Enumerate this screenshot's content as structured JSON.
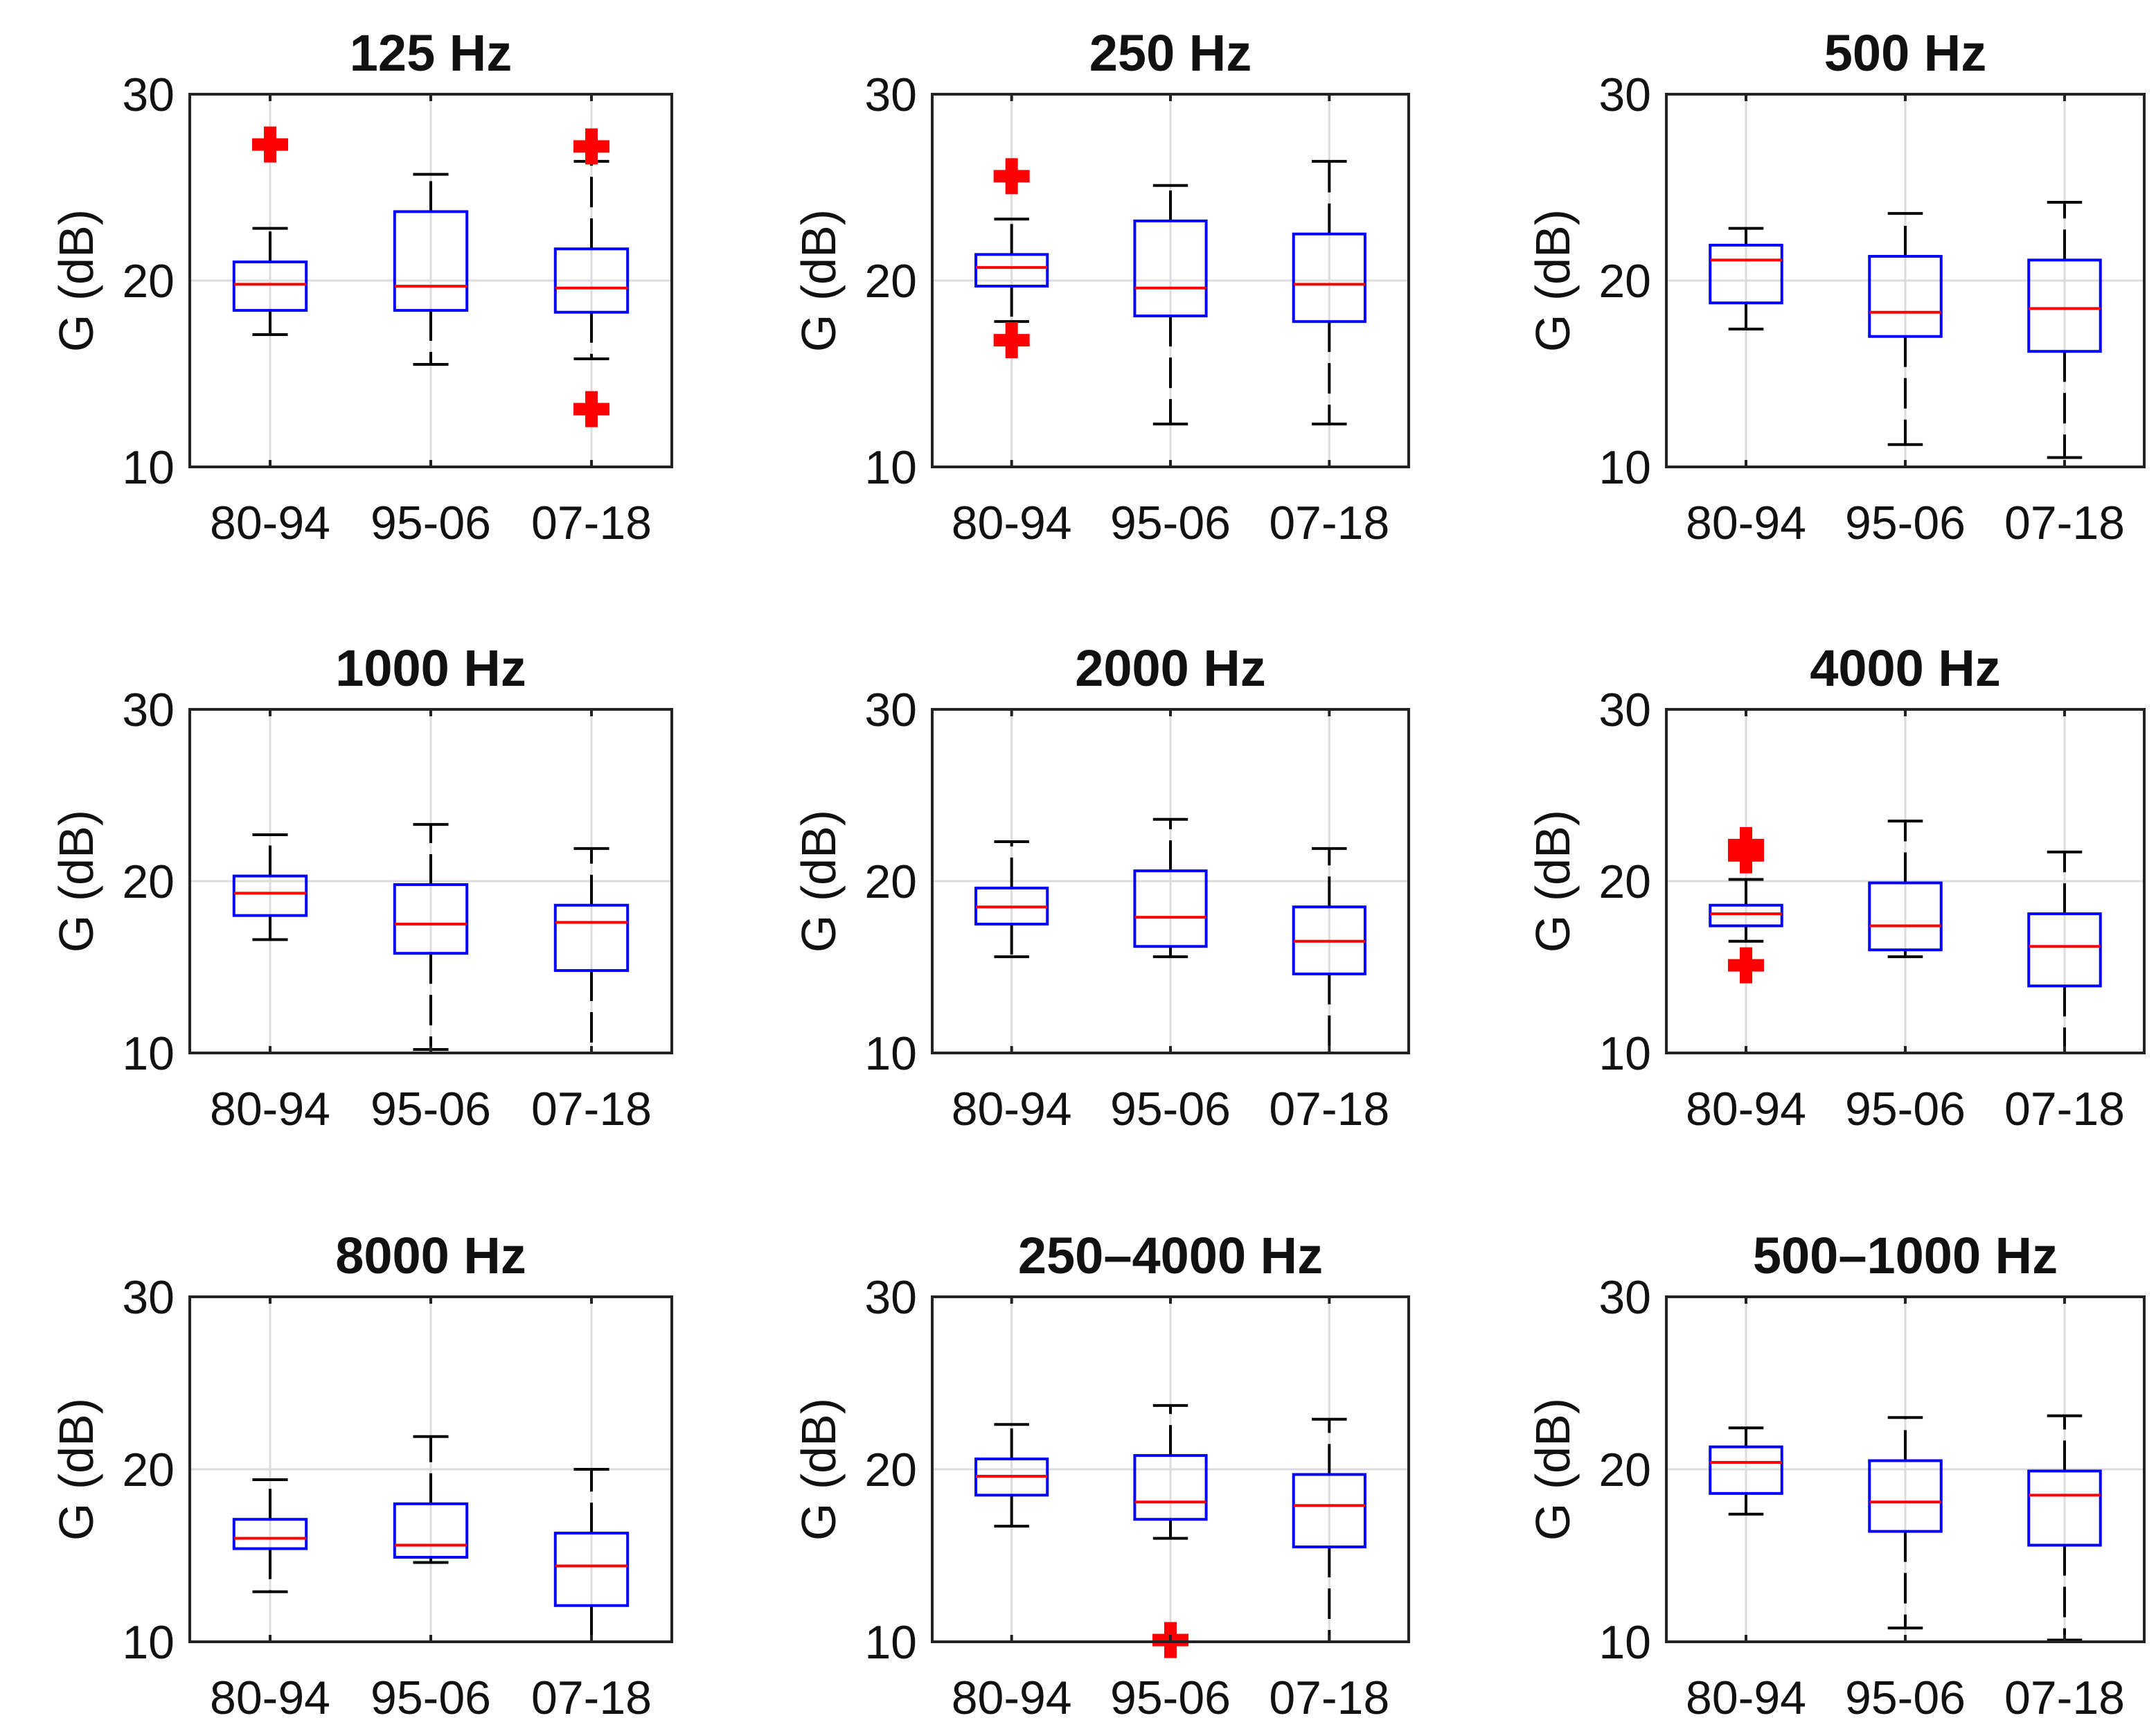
{
  "chart_data": [
    {
      "type": "box",
      "title": "125 Hz",
      "ylabel": "G (dB)",
      "ylim": [
        10,
        30
      ],
      "yticks": [
        "10",
        "20",
        "30"
      ],
      "categories": [
        "80-94",
        "95-06",
        "07-18"
      ],
      "grid": true,
      "boxes": [
        {
          "whisker_low": 17.1,
          "q1": 18.4,
          "median": 19.8,
          "q3": 21.0,
          "whisker_high": 22.8,
          "outliers": [
            27.3
          ]
        },
        {
          "whisker_low": 15.5,
          "q1": 18.4,
          "median": 19.7,
          "q3": 23.7,
          "whisker_high": 25.7,
          "outliers": []
        },
        {
          "whisker_low": 15.8,
          "q1": 18.3,
          "median": 19.6,
          "q3": 21.7,
          "whisker_high": 26.4,
          "outliers": [
            27.2,
            13.1
          ]
        }
      ]
    },
    {
      "type": "box",
      "title": "250 Hz",
      "ylabel": "G (dB)",
      "ylim": [
        10,
        30
      ],
      "yticks": [
        "10",
        "20",
        "30"
      ],
      "categories": [
        "80-94",
        "95-06",
        "07-18"
      ],
      "grid": true,
      "boxes": [
        {
          "whisker_low": 17.8,
          "q1": 19.7,
          "median": 20.7,
          "q3": 21.4,
          "whisker_high": 23.3,
          "outliers": [
            25.6,
            16.8
          ]
        },
        {
          "whisker_low": 12.3,
          "q1": 18.1,
          "median": 19.6,
          "q3": 23.2,
          "whisker_high": 25.1,
          "outliers": []
        },
        {
          "whisker_low": 12.3,
          "q1": 17.8,
          "median": 19.8,
          "q3": 22.5,
          "whisker_high": 26.4,
          "outliers": []
        }
      ]
    },
    {
      "type": "box",
      "title": "500 Hz",
      "ylabel": "G (dB)",
      "ylim": [
        10,
        30
      ],
      "yticks": [
        "10",
        "20",
        "30"
      ],
      "categories": [
        "80-94",
        "95-06",
        "07-18"
      ],
      "grid": true,
      "boxes": [
        {
          "whisker_low": 17.4,
          "q1": 18.8,
          "median": 21.1,
          "q3": 21.9,
          "whisker_high": 22.8,
          "outliers": []
        },
        {
          "whisker_low": 11.2,
          "q1": 17.0,
          "median": 18.3,
          "q3": 21.3,
          "whisker_high": 23.6,
          "outliers": []
        },
        {
          "whisker_low": 10.5,
          "q1": 16.2,
          "median": 18.5,
          "q3": 21.1,
          "whisker_high": 24.2,
          "outliers": []
        }
      ]
    },
    {
      "type": "box",
      "title": "1000 Hz",
      "ylabel": "G (dB)",
      "ylim": [
        10,
        30
      ],
      "yticks": [
        "10",
        "20",
        "30"
      ],
      "categories": [
        "80-94",
        "95-06",
        "07-18"
      ],
      "grid": true,
      "boxes": [
        {
          "whisker_low": 16.6,
          "q1": 18.0,
          "median": 19.3,
          "q3": 20.3,
          "whisker_high": 22.7,
          "outliers": []
        },
        {
          "whisker_low": 10.2,
          "q1": 15.8,
          "median": 17.5,
          "q3": 19.8,
          "whisker_high": 23.3,
          "outliers": []
        },
        {
          "whisker_low": 10.0,
          "q1": 14.8,
          "median": 17.6,
          "q3": 18.6,
          "whisker_high": 21.9,
          "outliers": []
        }
      ]
    },
    {
      "type": "box",
      "title": "2000 Hz",
      "ylabel": "G (dB)",
      "ylim": [
        10,
        30
      ],
      "yticks": [
        "10",
        "20",
        "30"
      ],
      "categories": [
        "80-94",
        "95-06",
        "07-18"
      ],
      "grid": true,
      "boxes": [
        {
          "whisker_low": 15.6,
          "q1": 17.5,
          "median": 18.5,
          "q3": 19.6,
          "whisker_high": 22.3,
          "outliers": []
        },
        {
          "whisker_low": 15.6,
          "q1": 16.2,
          "median": 17.9,
          "q3": 20.6,
          "whisker_high": 23.6,
          "outliers": []
        },
        {
          "whisker_low": 10.0,
          "q1": 14.6,
          "median": 16.5,
          "q3": 18.5,
          "whisker_high": 21.9,
          "outliers": []
        }
      ]
    },
    {
      "type": "box",
      "title": "4000 Hz",
      "ylabel": "G (dB)",
      "ylim": [
        10,
        30
      ],
      "yticks": [
        "10",
        "20",
        "30"
      ],
      "categories": [
        "80-94",
        "95-06",
        "07-18"
      ],
      "grid": true,
      "boxes": [
        {
          "whisker_low": 16.5,
          "q1": 17.4,
          "median": 18.1,
          "q3": 18.6,
          "whisker_high": 20.1,
          "outliers": [
            22.1,
            21.5,
            15.1
          ]
        },
        {
          "whisker_low": 15.6,
          "q1": 16.0,
          "median": 17.4,
          "q3": 19.9,
          "whisker_high": 23.5,
          "outliers": []
        },
        {
          "whisker_low": 10.0,
          "q1": 13.9,
          "median": 16.2,
          "q3": 18.1,
          "whisker_high": 21.7,
          "outliers": []
        }
      ]
    },
    {
      "type": "box",
      "title": "8000 Hz",
      "ylabel": "G (dB)",
      "ylim": [
        10,
        30
      ],
      "yticks": [
        "10",
        "20",
        "30"
      ],
      "categories": [
        "80-94",
        "95-06",
        "07-18"
      ],
      "grid": true,
      "boxes": [
        {
          "whisker_low": 12.9,
          "q1": 15.4,
          "median": 16.0,
          "q3": 17.1,
          "whisker_high": 19.4,
          "outliers": []
        },
        {
          "whisker_low": 14.6,
          "q1": 14.9,
          "median": 15.6,
          "q3": 18.0,
          "whisker_high": 21.9,
          "outliers": []
        },
        {
          "whisker_low": 10.0,
          "q1": 12.1,
          "median": 14.4,
          "q3": 16.3,
          "whisker_high": 20.0,
          "outliers": []
        }
      ]
    },
    {
      "type": "box",
      "title": "250–4000 Hz",
      "ylabel": "G (dB)",
      "ylim": [
        10,
        30
      ],
      "yticks": [
        "10",
        "20",
        "30"
      ],
      "categories": [
        "80-94",
        "95-06",
        "07-18"
      ],
      "grid": true,
      "boxes": [
        {
          "whisker_low": 16.7,
          "q1": 18.5,
          "median": 19.6,
          "q3": 20.6,
          "whisker_high": 22.6,
          "outliers": []
        },
        {
          "whisker_low": 16.0,
          "q1": 17.1,
          "median": 18.1,
          "q3": 20.8,
          "whisker_high": 23.7,
          "outliers": [
            10.1
          ]
        },
        {
          "whisker_low": 10.0,
          "q1": 15.5,
          "median": 17.9,
          "q3": 19.7,
          "whisker_high": 22.9,
          "outliers": []
        }
      ]
    },
    {
      "type": "box",
      "title": "500–1000 Hz",
      "ylabel": "G (dB)",
      "ylim": [
        10,
        30
      ],
      "yticks": [
        "10",
        "20",
        "30"
      ],
      "categories": [
        "80-94",
        "95-06",
        "07-18"
      ],
      "grid": true,
      "boxes": [
        {
          "whisker_low": 17.4,
          "q1": 18.6,
          "median": 20.4,
          "q3": 21.3,
          "whisker_high": 22.4,
          "outliers": []
        },
        {
          "whisker_low": 10.8,
          "q1": 16.4,
          "median": 18.1,
          "q3": 20.5,
          "whisker_high": 23.0,
          "outliers": []
        },
        {
          "whisker_low": 10.1,
          "q1": 15.6,
          "median": 18.5,
          "q3": 19.9,
          "whisker_high": 23.1,
          "outliers": []
        }
      ]
    }
  ],
  "colors": {
    "box": "#0000ff",
    "median": "#ff0000",
    "outlier": "#ff0000",
    "whisker": "#000000",
    "grid": "#dcdcdc"
  }
}
